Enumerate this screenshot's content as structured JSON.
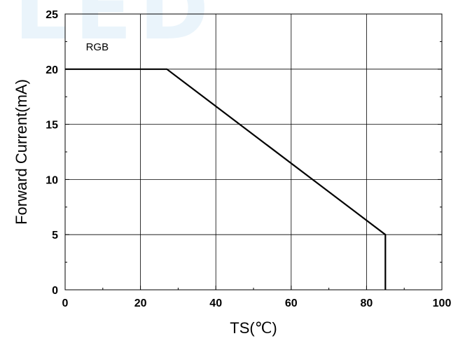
{
  "chart_data": {
    "type": "line",
    "title": "",
    "xlabel": "TS(℃)",
    "ylabel": "Forward Current(mA)",
    "xlim": [
      0,
      100
    ],
    "ylim": [
      0,
      25
    ],
    "x_ticks": [
      0,
      20,
      40,
      60,
      80,
      100
    ],
    "y_ticks": [
      0,
      5,
      10,
      15,
      20,
      25
    ],
    "grid": true,
    "series": [
      {
        "name": "RGB",
        "color": "#000000",
        "points": [
          [
            0,
            20
          ],
          [
            27,
            20
          ],
          [
            85,
            5
          ],
          [
            85,
            0
          ]
        ]
      }
    ]
  }
}
